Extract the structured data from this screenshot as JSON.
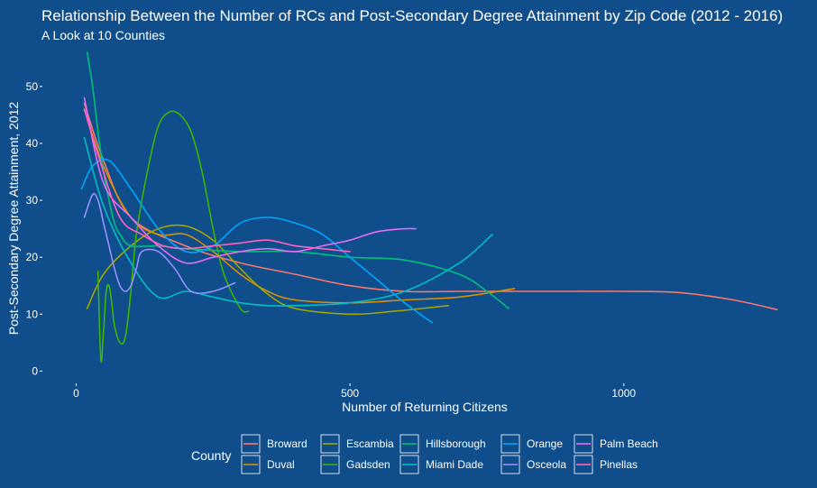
{
  "chart_data": {
    "type": "line",
    "title": "Relationship Between the Number of RCs and Post-Secondary Degree Attainment by Zip Code (2012 - 2016)",
    "subtitle": "A Look at 10 Counties",
    "xlabel": "Number of Returning Citizens",
    "ylabel": "Post-Secondary Degree Attainment, 2012",
    "xlim": [
      -60,
      1310
    ],
    "ylim": [
      -2,
      56
    ],
    "x_ticks": [
      0,
      500,
      1000
    ],
    "y_ticks": [
      0,
      10,
      20,
      30,
      40,
      50
    ],
    "grid": false,
    "legend_title": "County",
    "legend_position": "bottom",
    "series": [
      {
        "name": "Broward",
        "color": "#F8766D",
        "x": [
          15,
          50,
          100,
          200,
          300,
          400,
          500,
          600,
          700,
          800,
          900,
          1000,
          1100,
          1200,
          1280
        ],
        "y": [
          47,
          37,
          27,
          22,
          19,
          17,
          15,
          14,
          14,
          14,
          14,
          14,
          13.8,
          12.5,
          10.8
        ]
      },
      {
        "name": "Duval",
        "color": "#D89000",
        "x": [
          15,
          50,
          100,
          150,
          200,
          250,
          300,
          350,
          400,
          500,
          600,
          700,
          800
        ],
        "y": [
          46,
          36,
          27,
          24,
          24,
          21,
          17,
          14,
          12.5,
          12,
          12.5,
          13,
          14.5
        ]
      },
      {
        "name": "Escambia",
        "color": "#A3A500",
        "x": [
          20,
          50,
          100,
          150,
          200,
          250,
          300,
          350,
          400,
          500,
          580,
          680
        ],
        "y": [
          11,
          17,
          22,
          25,
          25.5,
          23,
          18,
          13.5,
          11,
          10,
          10.5,
          11.5
        ]
      },
      {
        "name": "Gadsden",
        "color": "#39B600",
        "x": [
          40,
          45,
          50,
          55,
          60,
          65,
          70,
          80,
          90,
          100,
          110,
          130,
          150,
          170,
          190,
          210,
          230,
          250,
          270,
          300,
          315
        ],
        "y": [
          17.5,
          2,
          7,
          14,
          15,
          12,
          8,
          5,
          6,
          14,
          24,
          35,
          43,
          45.5,
          45,
          42,
          35,
          25,
          17,
          11,
          10.5
        ]
      },
      {
        "name": "Hillsborough",
        "color": "#00BF7D",
        "x": [
          20,
          30,
          40,
          50,
          60,
          70,
          80,
          100,
          150,
          200,
          300,
          400,
          500,
          600,
          700,
          750,
          790
        ],
        "y": [
          56,
          50,
          42,
          35,
          30,
          26,
          24,
          22,
          22,
          21.5,
          21,
          21,
          20,
          19.5,
          17,
          14,
          11
        ]
      },
      {
        "name": "Miami Dade",
        "color": "#00BFC4",
        "x": [
          15,
          50,
          100,
          150,
          200,
          250,
          300,
          350,
          400,
          500,
          600,
          700,
          760
        ],
        "y": [
          41,
          29,
          19,
          13,
          14,
          13,
          12,
          11.5,
          11.5,
          12,
          14,
          19,
          24
        ]
      },
      {
        "name": "Orange",
        "color": "#00A5FF",
        "x": [
          10,
          30,
          60,
          100,
          150,
          200,
          250,
          300,
          350,
          400,
          450,
          500,
          550,
          600,
          650
        ],
        "y": [
          32,
          36,
          37,
          32,
          25,
          21,
          22,
          26,
          27,
          26,
          24,
          20,
          16,
          12,
          8.5
        ]
      },
      {
        "name": "Osceola",
        "color": "#9590FF",
        "x": [
          15,
          30,
          40,
          50,
          60,
          70,
          80,
          90,
          100,
          110,
          120,
          150,
          180,
          210,
          250,
          290
        ],
        "y": [
          27,
          31,
          30,
          26,
          22,
          18,
          15,
          14,
          15,
          18,
          21,
          21,
          18,
          14,
          14,
          15.5
        ]
      },
      {
        "name": "Palm Beach",
        "color": "#E76BF3",
        "x": [
          15,
          50,
          100,
          150,
          200,
          250,
          300,
          350,
          400,
          450,
          500,
          550,
          600,
          620
        ],
        "y": [
          48,
          33,
          27,
          22,
          19,
          20,
          21,
          21.5,
          21,
          22,
          23,
          24.5,
          25,
          25
        ]
      },
      {
        "name": "Pinellas",
        "color": "#FF62BC",
        "x": [
          15,
          40,
          80,
          120,
          160,
          200,
          250,
          300,
          350,
          400,
          450,
          500
        ],
        "y": [
          46,
          38,
          27,
          24,
          22,
          21.5,
          22,
          22.5,
          23,
          22,
          21.5,
          21
        ]
      }
    ]
  }
}
